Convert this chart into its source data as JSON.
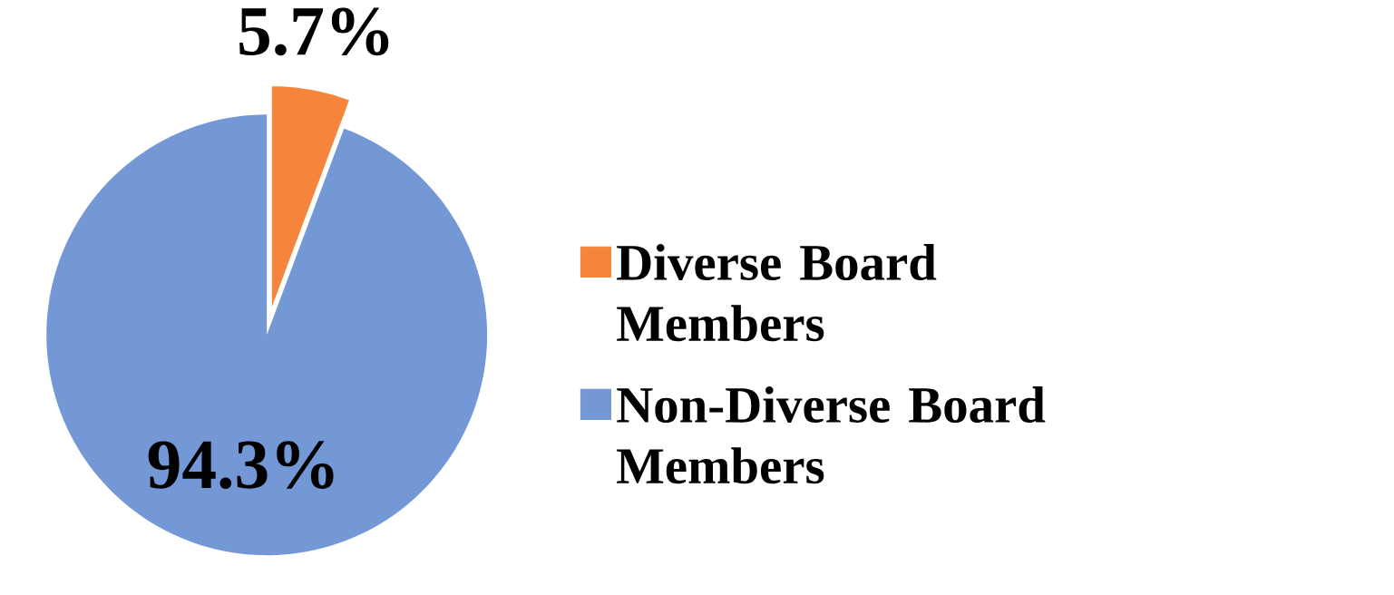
{
  "chart_data": {
    "type": "pie",
    "categories": [
      "Diverse Board Members",
      "Non-Diverse Board Members"
    ],
    "values": [
      5.7,
      94.3
    ],
    "colors": [
      "#f5853a",
      "#7497d5"
    ],
    "value_labels": [
      "5.7%",
      "94.3%"
    ],
    "legend": "right"
  }
}
